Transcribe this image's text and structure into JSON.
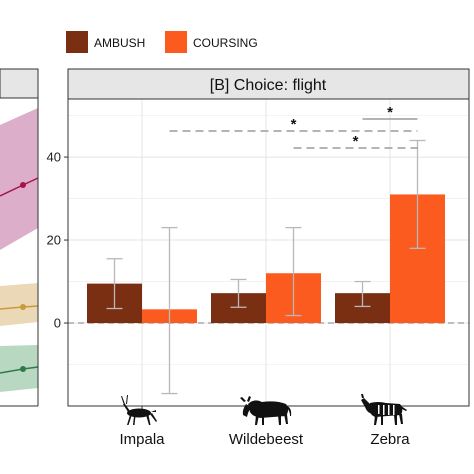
{
  "chart_data": {
    "type": "bar",
    "title": "[B] Choice: flight",
    "categories": [
      "Impala",
      "Wildebeest",
      "Zebra"
    ],
    "series": [
      {
        "name": "AMBUSH",
        "color": "#7a2e12",
        "values": [
          9.5,
          7.2,
          7.2
        ],
        "err_low": [
          3.5,
          3.8,
          4.0
        ],
        "err_high": [
          15.5,
          10.5,
          10.0
        ]
      },
      {
        "name": "COURSING",
        "color": "#fb5b1e",
        "values": [
          3.3,
          12.0,
          31.0
        ],
        "err_low": [
          -17.0,
          1.8,
          18.0
        ],
        "err_high": [
          23.0,
          23.0,
          44.0
        ]
      }
    ],
    "yticks": [
      0,
      20,
      40
    ],
    "ylim": [
      -20,
      54
    ],
    "xlabel": "",
    "ylabel": "",
    "grid": true,
    "legend_position": "top",
    "significance": [
      {
        "label": "*",
        "from": "Impala COURSING",
        "to": "Zebra COURSING"
      },
      {
        "label": "*",
        "from": "Wildebeest COURSING",
        "to": "Zebra COURSING"
      },
      {
        "label": "*",
        "from": "Zebra AMBUSH",
        "to": "Zebra COURSING"
      }
    ],
    "icons": [
      "impala-silhouette-icon",
      "wildebeest-silhouette-icon",
      "zebra-silhouette-icon"
    ],
    "colors": {
      "strip_bg": "#e6e6e6",
      "panel_border": "#333333",
      "grid": "#ececec",
      "error_bar": "#b8b8b8",
      "reference_line": "#999999",
      "left_band_pink": "#dcaec9",
      "left_band_tan": "#ead8b6",
      "left_band_green": "#b9d8c2",
      "left_line": "#a8144a"
    }
  }
}
